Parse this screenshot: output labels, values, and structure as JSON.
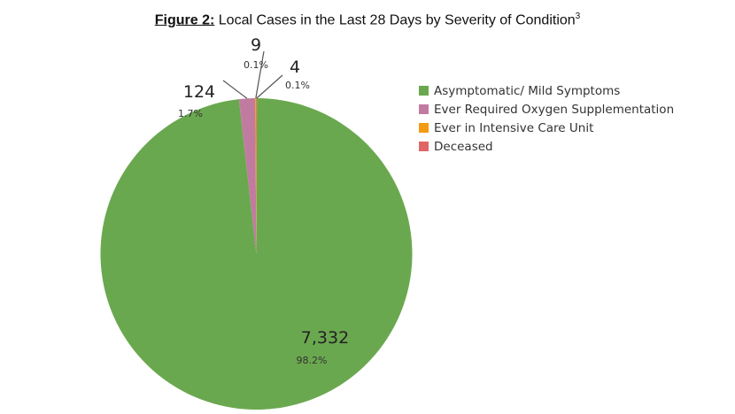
{
  "chart_data": {
    "type": "pie",
    "title_prefix": "Figure 2:",
    "title": "Local Cases in the Last 28 Days by Severity of Condition",
    "title_sup": "3",
    "slices": [
      {
        "name": "Asymptomatic/ Mild Symptoms",
        "value": 7332,
        "label": "7,332",
        "pct": "98.2%",
        "color": "#6aa84f"
      },
      {
        "name": "Ever Required Oxygen Supplementation",
        "value": 124,
        "label": "124",
        "pct": "1.7%",
        "color": "#c27ba0"
      },
      {
        "name": "Ever in Intensive Care Unit",
        "value": 9,
        "label": "9",
        "pct": "0.1%",
        "color": "#f39c12"
      },
      {
        "name": "Deceased",
        "value": 4,
        "label": "4",
        "pct": "0.1%",
        "color": "#e06666"
      }
    ],
    "legend_position": "right"
  }
}
